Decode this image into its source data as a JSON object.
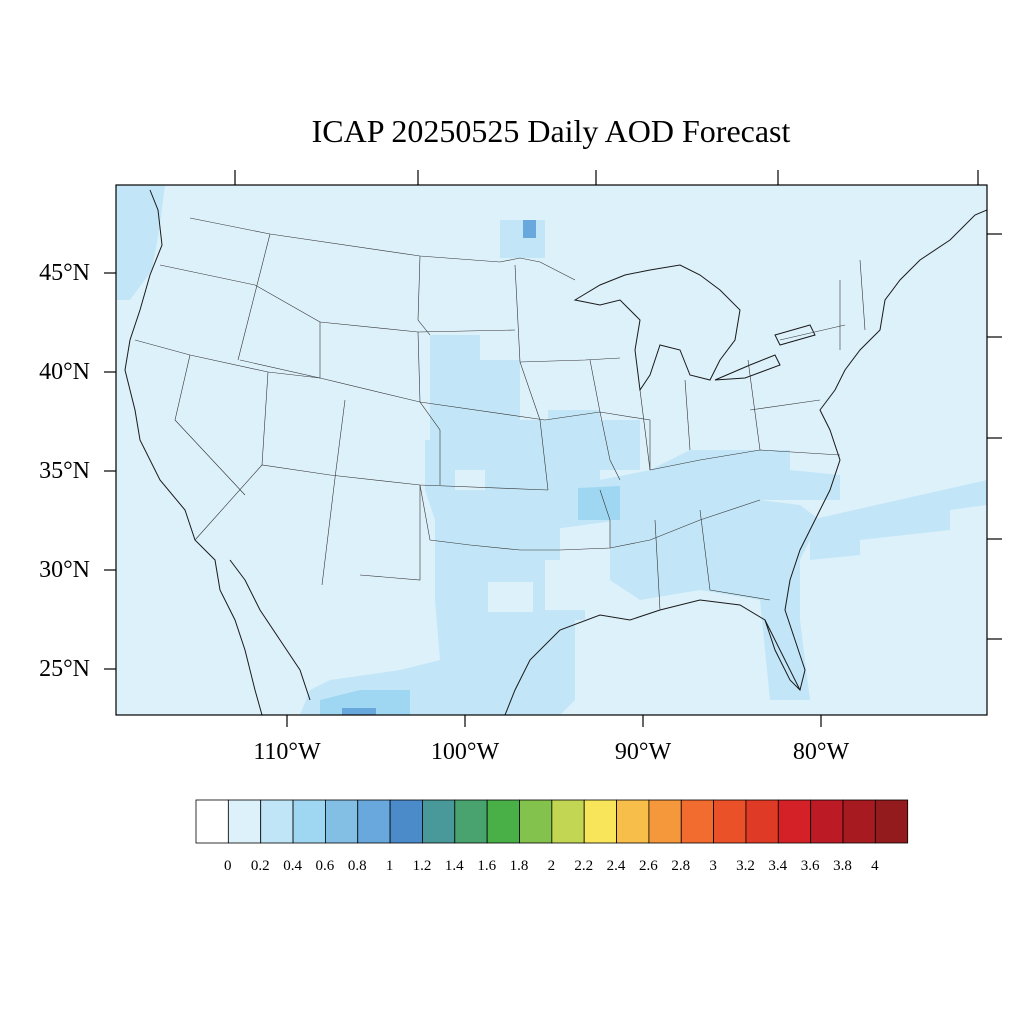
{
  "title": "ICAP 20250525 Daily AOD Forecast",
  "map": {
    "region": "Contiguous United States",
    "variable": "AOD",
    "projection": "Lambert conformal",
    "background_color": "#ddf1fb",
    "lat_labels": [
      "45°N",
      "40°N",
      "35°N",
      "30°N",
      "25°N"
    ],
    "lon_labels": [
      "110°W",
      "100°W",
      "90°W",
      "80°W"
    ],
    "aod_regions": [
      {
        "area": "Pacific Northwest coast",
        "aod_range": "0.2-0.4"
      },
      {
        "area": "Western Lake Superior",
        "aod_range": "0.2-0.4",
        "peak": "0.8-1"
      },
      {
        "area": "Central Plains (Nebraska, Kansas)",
        "aod_range": "0.2-0.4"
      },
      {
        "area": "Missouri / Mississippi valley",
        "aod_range": "0.2-0.4"
      },
      {
        "area": "Tennessee / Arkansas band",
        "aod_range": "0.4-0.6"
      },
      {
        "area": "Texas and western Gulf coast",
        "aod_range": "0.2-0.4"
      },
      {
        "area": "Southeast (Alabama, Georgia, Carolinas)",
        "aod_range": "0.2-0.4"
      },
      {
        "area": "Florida peninsula",
        "aod_range": "0.2-0.4"
      },
      {
        "area": "Atlantic offshore band",
        "aod_range": "0.2-0.4"
      },
      {
        "area": "Northern Mexico (Chihuahua)",
        "aod_range": "0.4-0.6",
        "peak": "0.8-1"
      }
    ]
  },
  "colorbar": {
    "labels": [
      "0",
      "0.2",
      "0.4",
      "0.6",
      "0.8",
      "1",
      "1.2",
      "1.4",
      "1.6",
      "1.8",
      "2",
      "2.2",
      "2.4",
      "2.6",
      "2.8",
      "3",
      "3.2",
      "3.4",
      "3.6",
      "3.8",
      "4"
    ],
    "colors": [
      "#ffffff",
      "#ddf1fb",
      "#bfe5f7",
      "#9fd7f2",
      "#83bfe5",
      "#68a8dc",
      "#4b8bca",
      "#4a999a",
      "#48a36e",
      "#49b048",
      "#83c24c",
      "#c2d653",
      "#f8e55a",
      "#f7bf4a",
      "#f5983c",
      "#f16c2e",
      "#ea5129",
      "#df3a25",
      "#d42127",
      "#bc1a25",
      "#a71b20",
      "#931a1d"
    ]
  }
}
